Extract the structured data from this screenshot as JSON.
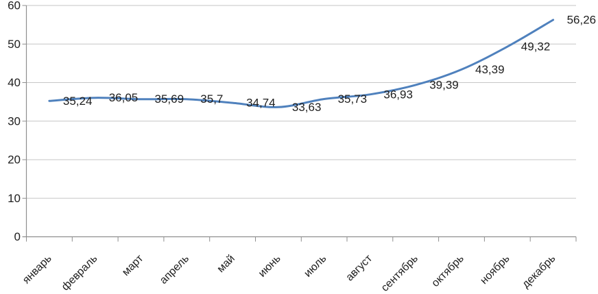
{
  "chart_data": {
    "type": "line",
    "title": "",
    "categories": [
      "январь",
      "февраль",
      "март",
      "апрель",
      "май",
      "июнь",
      "июль",
      "август",
      "сентябрь",
      "октябрь",
      "ноябрь",
      "декабрь"
    ],
    "series": [
      {
        "name": "",
        "values": [
          35.24,
          36.05,
          35.69,
          35.7,
          34.74,
          33.63,
          35.73,
          36.93,
          39.39,
          43.39,
          49.32,
          56.26
        ]
      }
    ],
    "data_labels": [
      "35,24",
      "36,05",
      "35,69",
      "35,7",
      "34,74",
      "33,63",
      "35,73",
      "36,93",
      "39,39",
      "43,39",
      "49,32",
      "56,26"
    ],
    "xlabel": "",
    "ylabel": "",
    "y_ticks": [
      0,
      10,
      20,
      30,
      40,
      50,
      60
    ],
    "ylim": [
      0,
      60
    ],
    "grid": true,
    "legend": "none",
    "smooth": true,
    "colors": {
      "line": "#4F81BD",
      "gridline": "#C6C6C6",
      "axis": "#8E8E8E",
      "text": "#1E1E1E",
      "background": "#FFFFFF"
    }
  }
}
